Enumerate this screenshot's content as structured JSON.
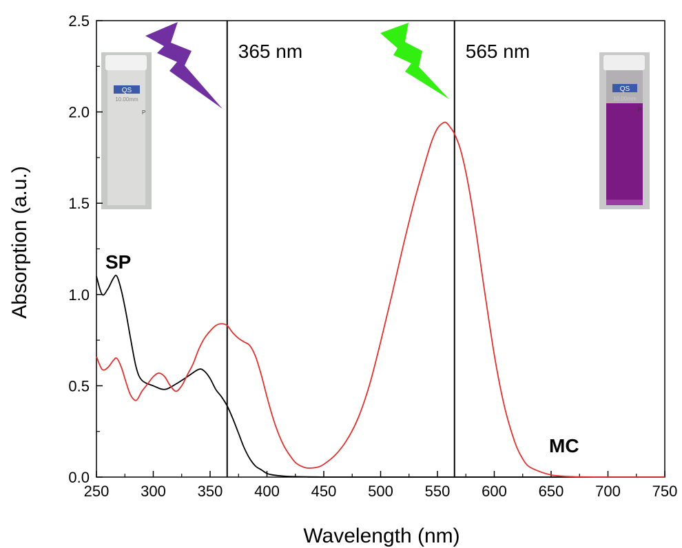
{
  "chart_data": {
    "type": "line",
    "title": "",
    "xlabel": "Wavelength (nm)",
    "ylabel": "Absorption (a.u.)",
    "xlim": [
      250,
      750
    ],
    "ylim": [
      0,
      2.5
    ],
    "xticks": [
      "250",
      "300",
      "350",
      "400",
      "450",
      "500",
      "550",
      "600",
      "650",
      "700",
      "750"
    ],
    "yticks": [
      "0.0",
      "0.5",
      "1.0",
      "1.5",
      "2.0",
      "2.5"
    ],
    "grid": false,
    "series": [
      {
        "name": "SP",
        "color": "#000000",
        "x": [
          250,
          255,
          260,
          265,
          268,
          272,
          276,
          280,
          285,
          290,
          300,
          310,
          320,
          330,
          340,
          345,
          350,
          355,
          360,
          365,
          370,
          375,
          380,
          385,
          390,
          395,
          400,
          405,
          410,
          415,
          420,
          430,
          440,
          450,
          460,
          750
        ],
        "y": [
          1.1,
          1.0,
          1.03,
          1.09,
          1.1,
          1.02,
          0.9,
          0.76,
          0.6,
          0.53,
          0.5,
          0.48,
          0.51,
          0.55,
          0.59,
          0.58,
          0.54,
          0.48,
          0.44,
          0.39,
          0.32,
          0.24,
          0.16,
          0.1,
          0.06,
          0.04,
          0.02,
          0.012,
          0.008,
          0.005,
          0.003,
          0.002,
          0.001,
          0.0,
          0.0,
          0.0
        ]
      },
      {
        "name": "MC",
        "color": "#e03030",
        "x": [
          250,
          255,
          260,
          265,
          268,
          272,
          276,
          280,
          285,
          290,
          295,
          300,
          305,
          310,
          315,
          320,
          325,
          330,
          335,
          340,
          345,
          350,
          355,
          360,
          365,
          370,
          375,
          380,
          385,
          390,
          395,
          400,
          405,
          410,
          415,
          420,
          425,
          430,
          435,
          440,
          445,
          450,
          460,
          470,
          480,
          490,
          500,
          510,
          520,
          530,
          540,
          545,
          550,
          555,
          558,
          562,
          565,
          570,
          575,
          580,
          585,
          590,
          595,
          600,
          605,
          610,
          615,
          620,
          625,
          630,
          640,
          650,
          660,
          670,
          680,
          700,
          750
        ],
        "y": [
          0.66,
          0.59,
          0.6,
          0.64,
          0.65,
          0.6,
          0.52,
          0.45,
          0.42,
          0.47,
          0.51,
          0.55,
          0.57,
          0.55,
          0.5,
          0.47,
          0.5,
          0.56,
          0.62,
          0.7,
          0.76,
          0.8,
          0.83,
          0.84,
          0.83,
          0.79,
          0.76,
          0.74,
          0.72,
          0.66,
          0.56,
          0.44,
          0.33,
          0.24,
          0.17,
          0.12,
          0.08,
          0.06,
          0.05,
          0.05,
          0.055,
          0.07,
          0.12,
          0.2,
          0.32,
          0.5,
          0.74,
          1.0,
          1.27,
          1.52,
          1.74,
          1.84,
          1.91,
          1.94,
          1.94,
          1.91,
          1.88,
          1.8,
          1.67,
          1.5,
          1.3,
          1.08,
          0.87,
          0.67,
          0.5,
          0.36,
          0.25,
          0.16,
          0.1,
          0.06,
          0.03,
          0.012,
          0.005,
          0.002,
          0.001,
          0.0,
          0.0
        ]
      }
    ],
    "annotations": [
      {
        "text": "365 nm",
        "x": 365,
        "color": "#7a3fb0"
      },
      {
        "text": "565 nm",
        "x": 565,
        "color": "#33ee11"
      }
    ]
  },
  "cuvette_left": {
    "label": "QS",
    "sub": "10.00mm",
    "mark": "P"
  },
  "cuvette_right": {
    "label": "QS",
    "sub": "10.00mm",
    "mark": "P"
  }
}
